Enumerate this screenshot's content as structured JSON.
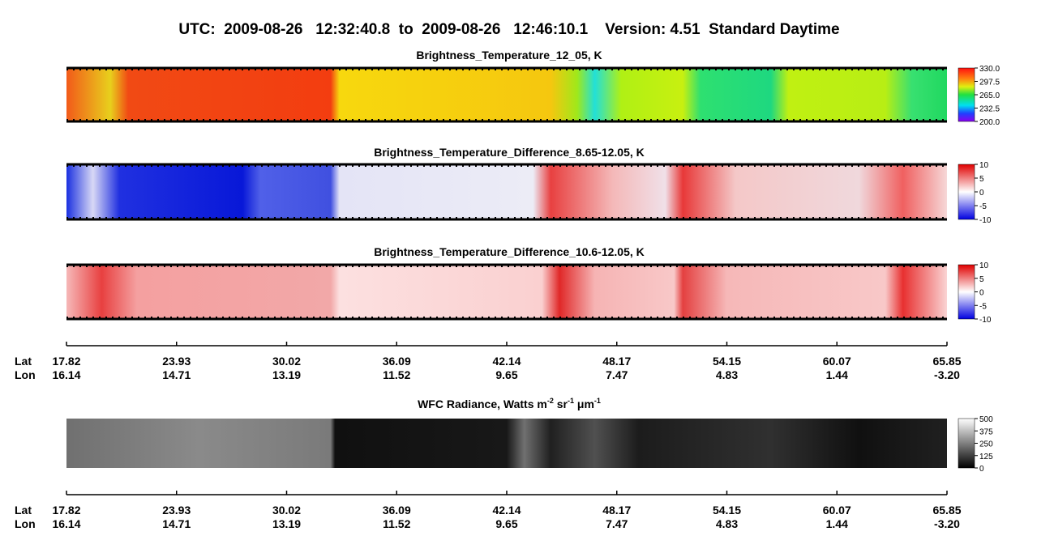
{
  "title": "UTC:  2009-08-26   12:32:40.8  to  2009-08-26   12:46:10.1    Version: 4.51  Standard Daytime",
  "panels": [
    {
      "title": [
        "Brightness_Temperature_12_05, K"
      ],
      "colorbar": [
        "330.0",
        "297.5",
        "265.0",
        "232.5",
        "200.0"
      ]
    },
    {
      "title": [
        "Brightness_Temperature_Difference_8.65-12.05, K"
      ],
      "colorbar": [
        "10",
        "5",
        "0",
        "-5",
        "-10"
      ]
    },
    {
      "title": [
        "Brightness_Temperature_Difference_10.6-12.05, K"
      ],
      "colorbar": [
        "10",
        "5",
        "0",
        "-5",
        "-10"
      ]
    },
    {
      "title": [
        "WFC Radiance, Watts m",
        "-2",
        " sr",
        "-1",
        " μm",
        "-1"
      ],
      "colorbar": [
        "500",
        "375",
        "250",
        "125",
        "0"
      ]
    }
  ],
  "axes": [
    {
      "row_labels": [
        "Lat",
        "Lon"
      ],
      "lat": [
        "17.82",
        "23.93",
        "30.02",
        "36.09",
        "42.14",
        "48.17",
        "54.15",
        "60.07",
        "65.85"
      ],
      "lon": [
        "16.14",
        "14.71",
        "13.19",
        "11.52",
        "9.65",
        "7.47",
        "4.83",
        "1.44",
        "-3.20"
      ]
    },
    {
      "row_labels": [
        "Lat",
        "Lon"
      ],
      "lat": [
        "17.82",
        "23.93",
        "30.02",
        "36.09",
        "42.14",
        "48.17",
        "54.15",
        "60.07",
        "65.85"
      ],
      "lon": [
        "16.14",
        "14.71",
        "13.19",
        "11.52",
        "9.65",
        "7.47",
        "4.83",
        "1.44",
        "-3.20"
      ]
    }
  ]
}
